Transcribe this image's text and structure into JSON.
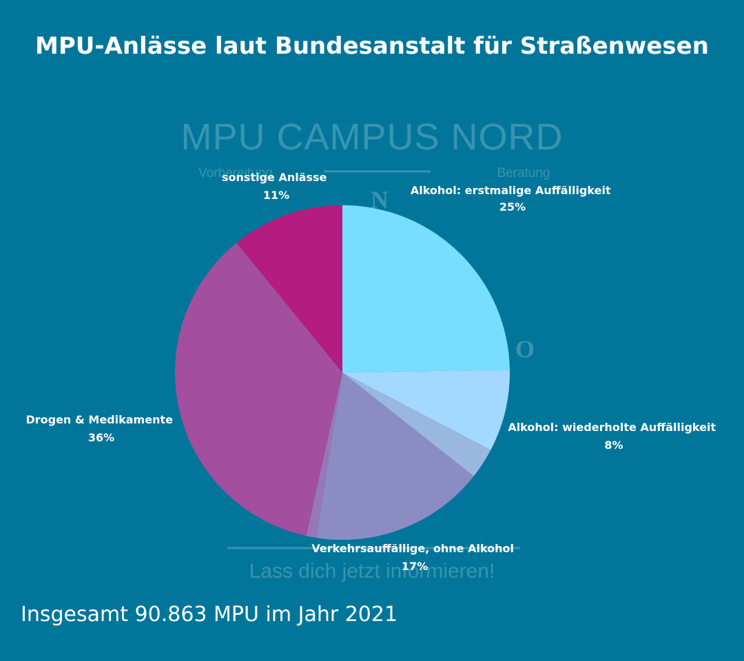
{
  "watermark": {
    "brand": "MPU CAMPUS NORD",
    "left_tag": "Vorbereitung",
    "right_tag": "Beratung",
    "letter_n": "N",
    "letter_o": "O",
    "bottom_text": "Lass dich jetzt informieren!"
  },
  "footer": {
    "text": "Insgesamt 90.863 MPU im Jahr 2021"
  },
  "chart_data": {
    "type": "pie",
    "title": "MPU-Anlässe laut Bundesanstalt für Straßenwesen",
    "start": "12 o'clock",
    "direction": "clockwise",
    "slices": [
      {
        "label": "Alkohol: erstmalige Auffälligkeit",
        "value": 25,
        "display": "25%",
        "color": "#78DEFF"
      },
      {
        "label": "Alkohol: wiederholte Auffälligkeit",
        "value": 8,
        "display": "8%",
        "color": "#A3D8FF"
      },
      {
        "label": "",
        "value": 3,
        "display": "",
        "color": "#9AB7DF"
      },
      {
        "label": "Verkehrsauffällige, ohne Alkohol",
        "value": 17,
        "display": "17%",
        "color": "#8C8CC4"
      },
      {
        "label": "",
        "value": 1,
        "display": "",
        "color": "#9877B8"
      },
      {
        "label": "Drogen & Medikamente",
        "value": 36,
        "display": "36%",
        "color": "#A34E9F"
      },
      {
        "label": "sonstige Anlässe",
        "value": 11,
        "display": "11%",
        "color": "#B41C80"
      }
    ]
  }
}
